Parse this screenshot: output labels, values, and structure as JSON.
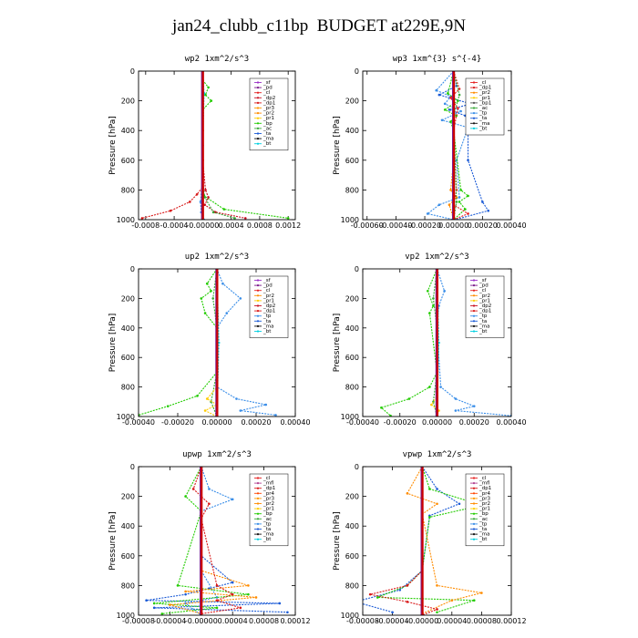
{
  "page_title": "jan24_clubb_c11bp  BUDGET at229E,9N",
  "colors": {
    "sf": "#9a30c8",
    "pd": "#7a1a8a",
    "cl": "#e52020",
    "dp1": "#d81818",
    "dp2": "#c81020",
    "pr1": "#ffcc00",
    "pr2": "#ff8c00",
    "pr3": "#ff9900",
    "pr4": "#ff4500",
    "bp": "#22cc00",
    "ac": "#38a838",
    "tp": "#3a8ee8",
    "ta": "#1a5ad6",
    "ma": "#111111",
    "bt": "#00d0e0",
    "mfl": "#b04090",
    "vertical": "#cc0000"
  },
  "chart_data": [
    {
      "type": "line",
      "title": "wp2  1xm^2/s^3",
      "ylabel": "Pressure [hPa]",
      "ylim": [
        1000,
        0
      ],
      "yticks": [
        0,
        200,
        400,
        600,
        800,
        1000
      ],
      "xlim": [
        -0.0009,
        0.0013
      ],
      "xticks": [
        -0.0008,
        -0.0004,
        0.0,
        0.0004,
        0.0008,
        0.0012
      ],
      "xticklabels": [
        "-0.0008",
        "-0.0004",
        "-0.00000",
        "0.0004",
        "0.0008",
        "0.0012"
      ],
      "legend": {
        "location": "top-right",
        "entries": [
          "_sf",
          "_pd",
          "_cl",
          "_dp2",
          "_dp1",
          "_pr3",
          "_pr2",
          "_pr1",
          "_bp",
          "_ac",
          "_ta",
          "_ma",
          "_bt"
        ]
      },
      "series": [
        {
          "key": "pd",
          "x": [
            0,
            0,
            0,
            0,
            0,
            0,
            0,
            0,
            0,
            0,
            0
          ],
          "y": [
            0,
            100,
            200,
            300,
            400,
            500,
            600,
            700,
            800,
            900,
            1000
          ]
        },
        {
          "key": "bp",
          "x": [
            0,
            8e-05,
            4e-05,
            0.00012,
            0,
            0,
            0,
            0,
            2e-05,
            0.0003,
            0.0012
          ],
          "y": [
            60,
            110,
            160,
            200,
            260,
            400,
            600,
            780,
            840,
            930,
            990
          ]
        },
        {
          "key": "dp1",
          "x": [
            0,
            0,
            0,
            0,
            0,
            -8e-05,
            -0.00018,
            -0.00045,
            -0.00085
          ],
          "y": [
            0,
            200,
            400,
            600,
            780,
            830,
            880,
            940,
            990
          ]
        },
        {
          "key": "dp2",
          "x": [
            0,
            0,
            4e-05,
            8e-05,
            3e-05,
            0.00018,
            0.0006
          ],
          "y": [
            0,
            600,
            800,
            850,
            900,
            950,
            990
          ]
        },
        {
          "key": "ac",
          "x": [
            0,
            0,
            0,
            3e-05,
            0.00015,
            0.00045
          ],
          "y": [
            0,
            300,
            750,
            850,
            950,
            990
          ]
        },
        {
          "key": "tp",
          "x": [
            0,
            0,
            -3e-05,
            -2e-05,
            2e-05
          ],
          "y": [
            0,
            700,
            880,
            950,
            1000
          ]
        },
        {
          "key": "bt",
          "x": [
            0,
            2e-05,
            0,
            1e-05
          ],
          "y": [
            0,
            150,
            500,
            1000
          ]
        }
      ]
    },
    {
      "type": "line",
      "title": "wp3  1xm^{3} s^{-4}",
      "ylabel": "Pressure [hPa]",
      "ylim": [
        1000,
        0
      ],
      "yticks": [
        0,
        200,
        400,
        600,
        800,
        1000
      ],
      "xlim": [
        -0.00063,
        0.0004
      ],
      "xticks": [
        -0.0006,
        -0.0004,
        -0.0002,
        0.0,
        0.0002,
        0.0004
      ],
      "xticklabels": [
        "-0.00060",
        "-0.00040",
        "-0.00020",
        "0.00000",
        "0.00020",
        "0.00040"
      ],
      "legend": {
        "location": "top-right",
        "entries": [
          "_cl",
          "_dp1",
          "_pr2",
          "_pr1",
          "_bp1",
          "_ac",
          "_tp",
          "_ta",
          "_ma",
          "_bt"
        ]
      },
      "series": [
        {
          "key": "ta",
          "x": [
            0,
            2e-05,
            -0.0001,
            0.00012,
            -3e-05,
            8e-05,
            0.0003,
            0.0001,
            0.0001,
            0.0002,
            0.00024,
            1e-05
          ],
          "y": [
            0,
            100,
            160,
            220,
            260,
            300,
            340,
            420,
            600,
            880,
            940,
            1000
          ]
        },
        {
          "key": "tp",
          "x": [
            0,
            -0.00012,
            -2e-05,
            -6e-05,
            5e-05,
            -8e-05,
            0.0001,
            2e-05,
            4e-05,
            -0.0001,
            -0.00018,
            0
          ],
          "y": [
            0,
            130,
            170,
            220,
            270,
            330,
            380,
            600,
            850,
            900,
            960,
            1000
          ]
        },
        {
          "key": "bp",
          "x": [
            0,
            -4e-05,
            3e-05,
            -6e-05,
            2e-05,
            -2e-05,
            0,
            5e-05,
            0.0001,
            4e-05,
            8e-05,
            0
          ],
          "y": [
            0,
            150,
            200,
            260,
            300,
            340,
            400,
            800,
            840,
            880,
            930,
            1000
          ]
        },
        {
          "key": "pr2",
          "x": [
            0,
            0,
            -2e-05,
            2e-05,
            -3e-05,
            0
          ],
          "y": [
            0,
            600,
            800,
            850,
            900,
            1000
          ]
        },
        {
          "key": "cl",
          "x": [
            0,
            4e-05,
            -2e-05,
            3e-05,
            0,
            2e-05,
            0,
            0.0001,
            0
          ],
          "y": [
            0,
            120,
            180,
            250,
            400,
            800,
            900,
            960,
            1000
          ]
        },
        {
          "key": "ac",
          "x": [
            0,
            4e-05,
            0,
            2e-05,
            0
          ],
          "y": [
            0,
            160,
            300,
            880,
            1000
          ]
        },
        {
          "key": "bt",
          "x": [
            0,
            0,
            0
          ],
          "y": [
            0,
            500,
            1000
          ]
        }
      ]
    },
    {
      "type": "line",
      "title": "up2  1xm^2/s^3",
      "ylabel": "Pressure [hPa]",
      "ylim": [
        1000,
        0
      ],
      "yticks": [
        0,
        200,
        400,
        600,
        800,
        1000
      ],
      "xlim": [
        -0.0004,
        0.0004
      ],
      "xticks": [
        -0.0004,
        -0.0002,
        0.0,
        0.0002,
        0.0004
      ],
      "xticklabels": [
        "-0.00040",
        "-0.00020",
        "0.00000",
        "0.00020",
        "0.00040"
      ],
      "legend": {
        "location": "top-right",
        "entries": [
          "_sf",
          "_pd",
          "_cl",
          "_pr2",
          "_pr1",
          "_dp2",
          "_dp1",
          "_tp",
          "_ta",
          "_ma",
          "_bt"
        ]
      },
      "series": [
        {
          "key": "tp",
          "x": [
            0,
            3e-05,
            0.00012,
            5e-05,
            0,
            0,
            0,
            0.0001,
            0.00025,
            0.00012,
            0.0003
          ],
          "y": [
            0,
            100,
            200,
            300,
            400,
            600,
            800,
            880,
            920,
            960,
            990
          ]
        },
        {
          "key": "bp",
          "x": [
            0,
            -5e-05,
            -3e-05,
            -8e-05,
            -6e-05,
            0,
            0,
            -0.0001,
            -0.00025,
            -0.0004
          ],
          "y": [
            0,
            100,
            150,
            200,
            300,
            400,
            700,
            860,
            930,
            990
          ]
        },
        {
          "key": "ac",
          "x": [
            0,
            -2e-05,
            0,
            0,
            -3e-05,
            0
          ],
          "y": [
            0,
            200,
            400,
            700,
            900,
            1000
          ]
        },
        {
          "key": "pr1",
          "x": [
            0,
            0,
            -5e-05,
            0,
            -6e-05,
            0
          ],
          "y": [
            0,
            800,
            880,
            920,
            960,
            1000
          ]
        },
        {
          "key": "pd",
          "x": [
            0,
            0,
            0,
            0,
            0,
            0
          ],
          "y": [
            0,
            200,
            400,
            600,
            800,
            1000
          ]
        },
        {
          "key": "bt",
          "x": [
            0,
            1e-05,
            0
          ],
          "y": [
            0,
            500,
            1000
          ]
        }
      ]
    },
    {
      "type": "line",
      "title": "vp2  1xm^2/s^3",
      "ylabel": "Pressure [hPa]",
      "ylim": [
        1000,
        0
      ],
      "yticks": [
        0,
        200,
        400,
        600,
        800,
        1000
      ],
      "xlim": [
        -0.0004,
        0.0004
      ],
      "xticks": [
        -0.0004,
        -0.0002,
        0.0,
        0.0002,
        0.0004
      ],
      "xticklabels": [
        "-0.00040",
        "-0.00020",
        "0.00000",
        "0.00020",
        "0.00040"
      ],
      "legend": {
        "location": "top-right",
        "entries": [
          "_sf",
          "_pd",
          "_cl",
          "_pr2",
          "_pr1",
          "_dp2",
          "_dp1",
          "_tp",
          "_ta",
          "_ma",
          "_bt"
        ]
      },
      "series": [
        {
          "key": "tp",
          "x": [
            0,
            4e-05,
            1e-05,
            0,
            2e-05,
            0.0001,
            0.0002,
            0.0001,
            0.0004
          ],
          "y": [
            0,
            150,
            250,
            400,
            800,
            880,
            930,
            960,
            995
          ]
        },
        {
          "key": "bp",
          "x": [
            0,
            -5e-05,
            -2e-05,
            -4e-05,
            0,
            -4e-05,
            -0.00015,
            -0.0003,
            -0.00025
          ],
          "y": [
            0,
            150,
            250,
            300,
            700,
            800,
            880,
            940,
            995
          ]
        },
        {
          "key": "ac",
          "x": [
            0,
            -2e-05,
            0,
            0,
            -2e-05,
            0
          ],
          "y": [
            0,
            200,
            400,
            700,
            900,
            1000
          ]
        },
        {
          "key": "pr1",
          "x": [
            0,
            0,
            -3e-05,
            1e-05,
            0
          ],
          "y": [
            0,
            860,
            920,
            960,
            1000
          ]
        },
        {
          "key": "pd",
          "x": [
            0,
            0,
            0,
            0,
            0,
            0
          ],
          "y": [
            0,
            200,
            400,
            600,
            800,
            1000
          ]
        },
        {
          "key": "bt",
          "x": [
            0,
            1e-05,
            0
          ],
          "y": [
            0,
            500,
            1000
          ]
        }
      ]
    },
    {
      "type": "line",
      "title": "upwp  1xm^2/s^3",
      "ylabel": "Pressure [hPa]",
      "ylim": [
        1000,
        0
      ],
      "yticks": [
        0,
        200,
        400,
        600,
        800,
        1000
      ],
      "xlim": [
        -8e-05,
        0.00012
      ],
      "xticks": [
        -8e-05,
        -4e-05,
        0.0,
        4e-05,
        8e-05,
        0.00012
      ],
      "xticklabels": [
        "-0.00008",
        "-0.00004",
        "-0.00000",
        "0.00004",
        "0.00008",
        "0.00012"
      ],
      "legend": {
        "location": "top-right",
        "entries": [
          "_cl",
          "_mfl",
          "_dp1",
          "_pr4",
          "_pr3",
          "_pr2",
          "_pr1",
          "_bp",
          "_ac",
          "_tp",
          "_ta",
          "_ma",
          "_bt"
        ]
      },
      "series": [
        {
          "key": "ta",
          "x": [
            0,
            0,
            4e-05,
            1e-05,
            -2e-05,
            -7e-05,
            0.0001,
            -6e-05,
            0.00011
          ],
          "y": [
            0,
            600,
            780,
            820,
            860,
            900,
            920,
            950,
            980
          ]
        },
        {
          "key": "tp",
          "x": [
            0,
            1e-05,
            4e-05,
            0,
            0,
            2e-05,
            -2e-05,
            0
          ],
          "y": [
            0,
            150,
            220,
            300,
            700,
            880,
            920,
            1000
          ]
        },
        {
          "key": "bp",
          "x": [
            0,
            -2e-05,
            0,
            -3e-05,
            6e-05,
            -6e-05,
            2e-05,
            -5e-05
          ],
          "y": [
            0,
            200,
            300,
            800,
            860,
            920,
            950,
            990
          ]
        },
        {
          "key": "pr2",
          "x": [
            0,
            0,
            6e-05,
            -2e-05,
            7e-05,
            -4e-05,
            0
          ],
          "y": [
            0,
            700,
            800,
            840,
            880,
            930,
            990
          ]
        },
        {
          "key": "dp1",
          "x": [
            0,
            -1e-05,
            1e-05,
            0,
            2e-05,
            4e-05,
            2e-05,
            5e-05,
            0
          ],
          "y": [
            0,
            150,
            250,
            350,
            800,
            860,
            900,
            950,
            990
          ]
        },
        {
          "key": "sf",
          "x": [
            0,
            0,
            0,
            0,
            0,
            0
          ],
          "y": [
            0,
            200,
            400,
            600,
            800,
            1000
          ]
        }
      ]
    },
    {
      "type": "line",
      "title": "vpwp  1xm^2/s^3",
      "ylabel": "Pressure [hPa]",
      "ylim": [
        1000,
        0
      ],
      "yticks": [
        0,
        200,
        400,
        600,
        800,
        1000
      ],
      "xlim": [
        -8e-05,
        0.00012
      ],
      "xticks": [
        -8e-05,
        -4e-05,
        0.0,
        4e-05,
        8e-05,
        0.00012
      ],
      "xticklabels": [
        "-0.00008",
        "-0.00004",
        "-0.00000",
        "0.00004",
        "0.00008",
        "0.00012"
      ],
      "legend": {
        "location": "top-right",
        "entries": [
          "_cl",
          "_mfl",
          "_dp1",
          "_pr4",
          "_pr3",
          "_pr2",
          "_pr1",
          "_bp",
          "_ac",
          "_tp",
          "_ta",
          "_ma",
          "_bt"
        ]
      },
      "series": [
        {
          "key": "ta",
          "x": [
            0,
            2e-05,
            5e-05,
            1e-05,
            0,
            -3e-05,
            -9e-05,
            -4e-05
          ],
          "y": [
            0,
            150,
            250,
            330,
            700,
            830,
            910,
            980
          ]
        },
        {
          "key": "bp",
          "x": [
            0,
            1e-05,
            8e-05,
            1e-05,
            0,
            -2e-05,
            -6e-05,
            7e-05,
            2e-05
          ],
          "y": [
            0,
            150,
            260,
            340,
            700,
            800,
            880,
            900,
            980
          ]
        },
        {
          "key": "pr2",
          "x": [
            0,
            -2e-05,
            2e-05,
            0,
            2e-05,
            8e-05,
            4e-05,
            0
          ],
          "y": [
            0,
            180,
            250,
            320,
            800,
            850,
            900,
            990
          ]
        },
        {
          "key": "dp1",
          "x": [
            0,
            0,
            -2e-05,
            -7e-05,
            -2e-05,
            2e-05,
            0
          ],
          "y": [
            0,
            700,
            800,
            860,
            910,
            960,
            1000
          ]
        },
        {
          "key": "sf",
          "x": [
            0,
            0,
            0,
            0,
            0,
            0
          ],
          "y": [
            0,
            200,
            400,
            600,
            800,
            1000
          ]
        }
      ]
    }
  ]
}
